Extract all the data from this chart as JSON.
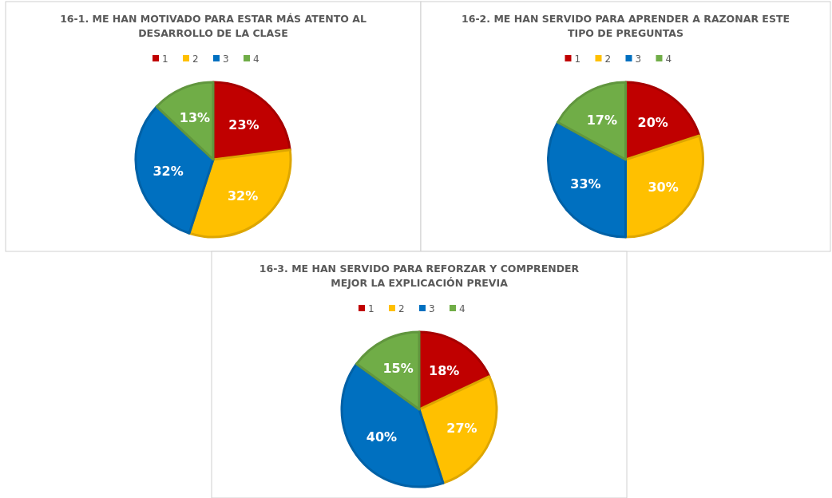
{
  "chart_data": [
    {
      "type": "pie",
      "title": "16-1. ME HAN MOTIVADO PARA ESTAR MÁS ATENTO AL DESARROLLO DE LA CLASE",
      "categories": [
        "1",
        "2",
        "3",
        "4"
      ],
      "values": [
        23,
        32,
        32,
        13
      ],
      "value_labels": [
        "23%",
        "32%",
        "32%",
        "13%"
      ],
      "colors": [
        "#c00000",
        "#ffc000",
        "#0070c0",
        "#70ad47"
      ],
      "legend": "top"
    },
    {
      "type": "pie",
      "title": "16-2. ME HAN SERVIDO PARA APRENDER A RAZONAR ESTE TIPO DE PREGUNTAS",
      "categories": [
        "1",
        "2",
        "3",
        "4"
      ],
      "values": [
        20,
        30,
        33,
        17
      ],
      "value_labels": [
        "20%",
        "30%",
        "33%",
        "17%"
      ],
      "colors": [
        "#c00000",
        "#ffc000",
        "#0070c0",
        "#70ad47"
      ],
      "legend": "top"
    },
    {
      "type": "pie",
      "title": "16-3. ME HAN SERVIDO PARA REFORZAR Y COMPRENDER MEJOR LA EXPLICACIÓN PREVIA",
      "categories": [
        "1",
        "2",
        "3",
        "4"
      ],
      "values": [
        18,
        27,
        40,
        15
      ],
      "value_labels": [
        "18%",
        "27%",
        "40%",
        "15%"
      ],
      "colors": [
        "#c00000",
        "#ffc000",
        "#0070c0",
        "#70ad47"
      ],
      "legend": "top"
    }
  ]
}
